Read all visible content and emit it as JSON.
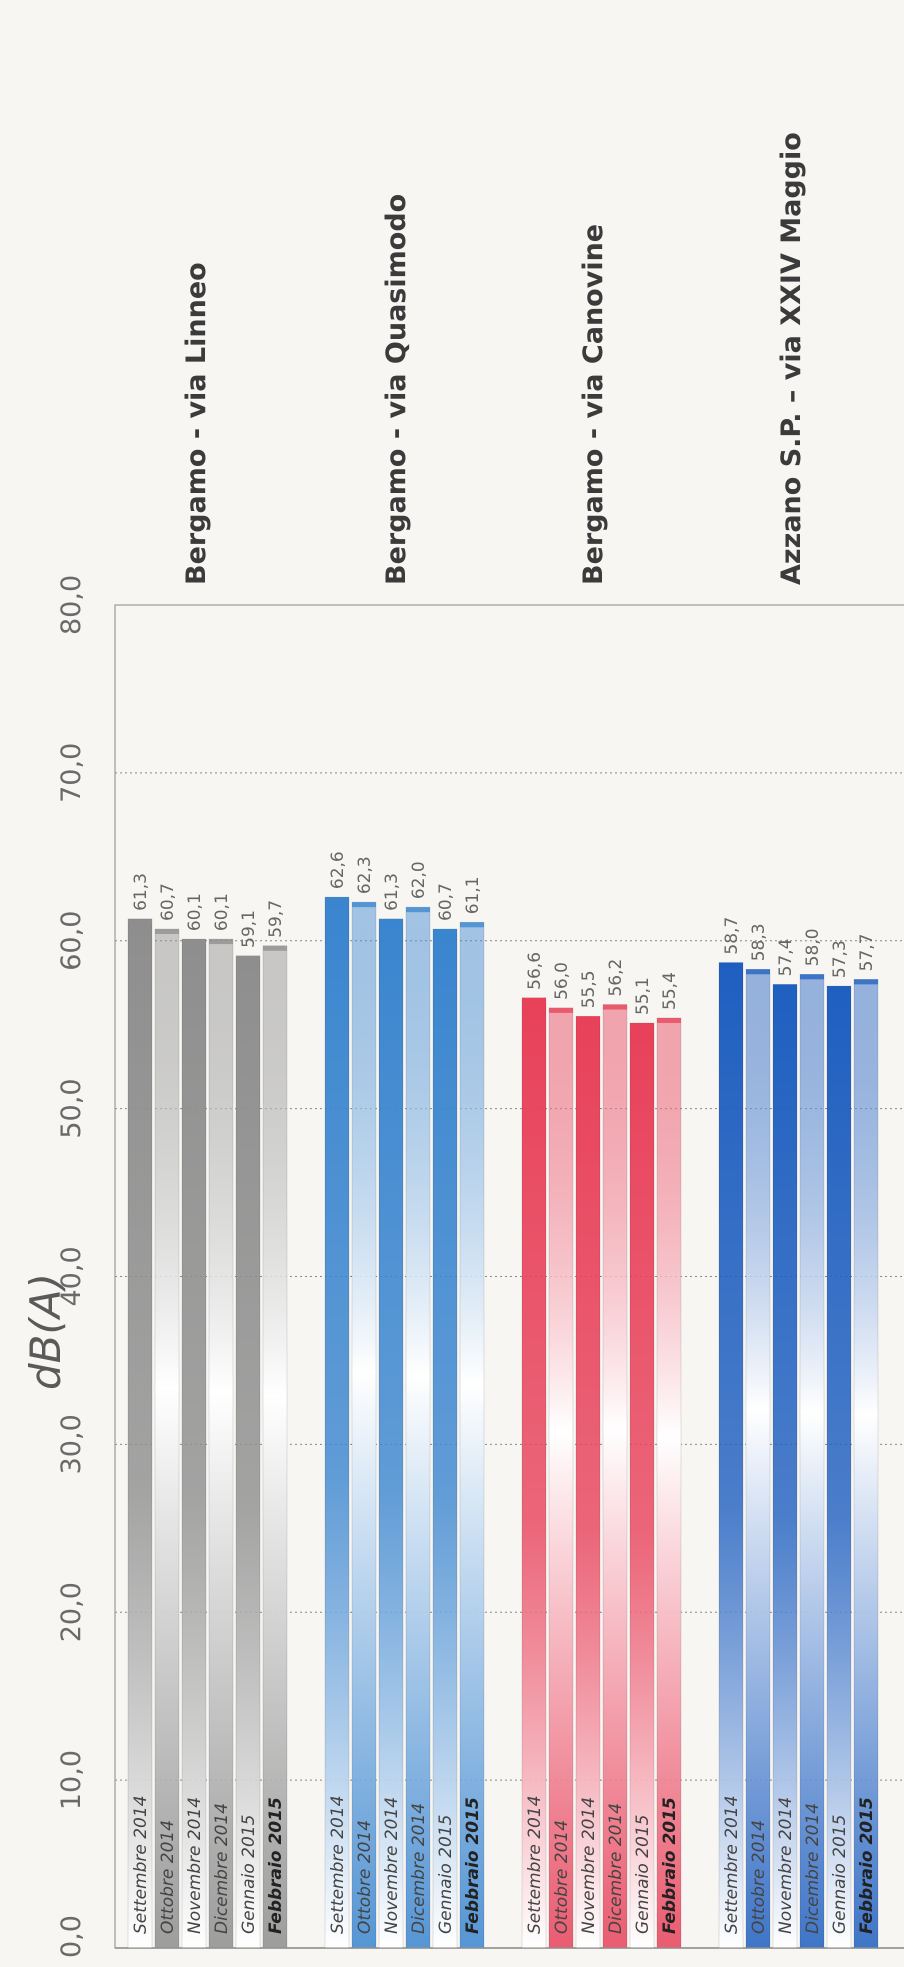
{
  "chart_data": {
    "type": "bar",
    "unit_label": "dB(A)",
    "y_tick_labels": [
      "0,0",
      "10,0",
      "20,0",
      "30,0",
      "40,0",
      "50,0",
      "60,0",
      "70,0",
      "80,0"
    ],
    "ylim": [
      0,
      80
    ],
    "grid": true,
    "categories": [
      "Settembre 2014",
      "Ottobre 2014",
      "Novembre 2014",
      "Dicembre 2014",
      "Gennaio 2015",
      "Febbraio 2015"
    ],
    "series": [
      {
        "name": "Bergamo - via Linneo",
        "values": [
          61.3,
          60.7,
          60.1,
          60.1,
          59.1,
          59.7
        ],
        "labels": [
          "61,3",
          "60,7",
          "60,1",
          "60,1",
          "59,1",
          "59,7"
        ],
        "color_dark": "#8e8e8e",
        "color_light": "#ffffff"
      },
      {
        "name": "Bergamo - via Quasimodo",
        "values": [
          62.6,
          62.3,
          61.3,
          62.0,
          60.7,
          61.1
        ],
        "labels": [
          "62,6",
          "62,3",
          "61,3",
          "62,0",
          "60,7",
          "61,1"
        ],
        "color_dark": "#3a85cf",
        "color_light": "#ffffff"
      },
      {
        "name": "Bergamo - via Canovine",
        "values": [
          56.6,
          56.0,
          55.5,
          56.2,
          55.1,
          55.4
        ],
        "labels": [
          "56,6",
          "56,0",
          "55,5",
          "56,2",
          "55,1",
          "55,4"
        ],
        "color_dark": "#e8415a",
        "color_light": "#ffffff"
      },
      {
        "name": "Azzano S.P. – via XXIV Maggio",
        "values": [
          58.7,
          58.3,
          57.4,
          58.0,
          57.3,
          57.7
        ],
        "labels": [
          "58,7",
          "58,3",
          "57,4",
          "58,0",
          "57,3",
          "57,7"
        ],
        "color_dark": "#1f5fc0",
        "color_light": "#ffffff"
      }
    ]
  }
}
